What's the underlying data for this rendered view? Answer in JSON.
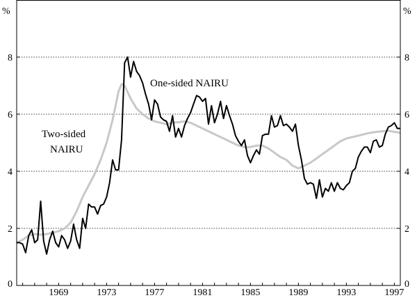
{
  "chart_data": {
    "type": "line",
    "y_unit_left": "%",
    "y_unit_right": "%",
    "xlim": [
      1965.5,
      1997.5
    ],
    "ylim": [
      0,
      10
    ],
    "yticks": [
      0,
      2,
      4,
      6,
      8
    ],
    "ytick_labels": [
      "0",
      "2",
      "4",
      "6",
      "8"
    ],
    "xticks": [
      1969,
      1973,
      1977,
      1981,
      1985,
      1989,
      1993,
      1997
    ],
    "xtick_labels": [
      "1969",
      "1973",
      "1977",
      "1981",
      "1985",
      "1989",
      "1993",
      "1997"
    ],
    "grid": "horizontal dotted",
    "colors": {
      "one_sided": "#000000",
      "two_sided": "#c8c8c8",
      "grid": "#000000"
    },
    "annotations": [
      {
        "text": "One-sided NAIRU",
        "series": "one_sided"
      },
      {
        "text": "Two-sided",
        "series": "two_sided"
      },
      {
        "text": "NAIRU",
        "series": "two_sided"
      }
    ],
    "series": [
      {
        "key": "one_sided",
        "points": [
          [
            1965.5,
            1.5
          ],
          [
            1965.75,
            1.5
          ],
          [
            1966.0,
            1.45
          ],
          [
            1966.25,
            1.15
          ],
          [
            1966.5,
            1.75
          ],
          [
            1966.75,
            1.95
          ],
          [
            1967.0,
            1.5
          ],
          [
            1967.25,
            1.6
          ],
          [
            1967.5,
            2.95
          ],
          [
            1967.75,
            1.55
          ],
          [
            1968.0,
            1.1
          ],
          [
            1968.25,
            1.6
          ],
          [
            1968.5,
            1.9
          ],
          [
            1968.75,
            1.5
          ],
          [
            1969.0,
            1.35
          ],
          [
            1969.25,
            1.75
          ],
          [
            1969.5,
            1.6
          ],
          [
            1969.75,
            1.3
          ],
          [
            1970.0,
            1.55
          ],
          [
            1970.25,
            2.15
          ],
          [
            1970.5,
            1.6
          ],
          [
            1970.75,
            1.3
          ],
          [
            1971.0,
            2.35
          ],
          [
            1971.25,
            2.0
          ],
          [
            1971.5,
            2.85
          ],
          [
            1971.75,
            2.75
          ],
          [
            1972.0,
            2.75
          ],
          [
            1972.25,
            2.5
          ],
          [
            1972.5,
            2.8
          ],
          [
            1972.75,
            2.85
          ],
          [
            1973.0,
            3.1
          ],
          [
            1973.25,
            3.6
          ],
          [
            1973.5,
            4.4
          ],
          [
            1973.75,
            4.05
          ],
          [
            1974.0,
            4.05
          ],
          [
            1974.25,
            5.1
          ],
          [
            1974.5,
            7.8
          ],
          [
            1974.75,
            8.0
          ],
          [
            1975.0,
            7.3
          ],
          [
            1975.25,
            7.85
          ],
          [
            1975.5,
            7.5
          ],
          [
            1975.75,
            7.35
          ],
          [
            1976.0,
            7.1
          ],
          [
            1976.25,
            6.7
          ],
          [
            1976.5,
            6.35
          ],
          [
            1976.75,
            5.8
          ],
          [
            1977.0,
            6.5
          ],
          [
            1977.25,
            6.35
          ],
          [
            1977.5,
            5.9
          ],
          [
            1977.75,
            5.8
          ],
          [
            1978.0,
            5.75
          ],
          [
            1978.25,
            5.4
          ],
          [
            1978.5,
            5.95
          ],
          [
            1978.75,
            5.2
          ],
          [
            1979.0,
            5.5
          ],
          [
            1979.25,
            5.2
          ],
          [
            1979.5,
            5.6
          ],
          [
            1979.75,
            5.85
          ],
          [
            1980.0,
            6.05
          ],
          [
            1980.25,
            6.35
          ],
          [
            1980.5,
            6.65
          ],
          [
            1980.75,
            6.6
          ],
          [
            1981.0,
            6.45
          ],
          [
            1981.25,
            6.55
          ],
          [
            1981.5,
            5.65
          ],
          [
            1981.75,
            6.3
          ],
          [
            1982.0,
            5.7
          ],
          [
            1982.25,
            6.0
          ],
          [
            1982.5,
            6.45
          ],
          [
            1982.75,
            5.85
          ],
          [
            1983.0,
            6.3
          ],
          [
            1983.25,
            5.95
          ],
          [
            1983.5,
            5.65
          ],
          [
            1983.75,
            5.25
          ],
          [
            1984.0,
            5.05
          ],
          [
            1984.25,
            4.9
          ],
          [
            1984.5,
            5.1
          ],
          [
            1984.75,
            4.55
          ],
          [
            1985.0,
            4.3
          ],
          [
            1985.25,
            4.55
          ],
          [
            1985.5,
            4.75
          ],
          [
            1985.75,
            4.6
          ],
          [
            1986.0,
            5.25
          ],
          [
            1986.25,
            5.3
          ],
          [
            1986.5,
            5.3
          ],
          [
            1986.75,
            5.95
          ],
          [
            1987.0,
            5.55
          ],
          [
            1987.25,
            5.6
          ],
          [
            1987.5,
            5.95
          ],
          [
            1987.75,
            5.6
          ],
          [
            1988.0,
            5.65
          ],
          [
            1988.25,
            5.55
          ],
          [
            1988.5,
            5.4
          ],
          [
            1988.75,
            5.65
          ],
          [
            1989.0,
            4.9
          ],
          [
            1989.25,
            4.4
          ],
          [
            1989.5,
            3.75
          ],
          [
            1989.75,
            3.55
          ],
          [
            1990.0,
            3.6
          ],
          [
            1990.25,
            3.55
          ],
          [
            1990.5,
            3.05
          ],
          [
            1990.75,
            3.7
          ],
          [
            1991.0,
            3.1
          ],
          [
            1991.25,
            3.4
          ],
          [
            1991.5,
            3.3
          ],
          [
            1991.75,
            3.6
          ],
          [
            1992.0,
            3.3
          ],
          [
            1992.25,
            3.6
          ],
          [
            1992.5,
            3.4
          ],
          [
            1992.75,
            3.35
          ],
          [
            1993.0,
            3.5
          ],
          [
            1993.25,
            3.6
          ],
          [
            1993.5,
            4.0
          ],
          [
            1993.75,
            4.1
          ],
          [
            1994.0,
            4.5
          ],
          [
            1994.25,
            4.7
          ],
          [
            1994.5,
            4.85
          ],
          [
            1994.75,
            4.85
          ],
          [
            1995.0,
            4.65
          ],
          [
            1995.25,
            5.05
          ],
          [
            1995.5,
            5.1
          ],
          [
            1995.75,
            4.85
          ],
          [
            1996.0,
            4.9
          ],
          [
            1996.25,
            5.3
          ],
          [
            1996.5,
            5.55
          ],
          [
            1996.75,
            5.6
          ],
          [
            1997.0,
            5.7
          ],
          [
            1997.25,
            5.5
          ],
          [
            1997.5,
            5.5
          ]
        ]
      },
      {
        "key": "two_sided",
        "points": [
          [
            1965.5,
            1.5
          ],
          [
            1966.0,
            1.6
          ],
          [
            1966.5,
            1.75
          ],
          [
            1967.0,
            1.8
          ],
          [
            1967.5,
            1.78
          ],
          [
            1968.0,
            1.8
          ],
          [
            1968.5,
            1.85
          ],
          [
            1969.0,
            1.9
          ],
          [
            1969.5,
            2.0
          ],
          [
            1970.0,
            2.2
          ],
          [
            1970.5,
            2.6
          ],
          [
            1971.0,
            3.1
          ],
          [
            1971.5,
            3.5
          ],
          [
            1972.0,
            3.9
          ],
          [
            1972.5,
            4.4
          ],
          [
            1973.0,
            5.0
          ],
          [
            1973.5,
            5.8
          ],
          [
            1974.0,
            6.8
          ],
          [
            1974.25,
            7.05
          ],
          [
            1974.5,
            7.0
          ],
          [
            1975.0,
            6.55
          ],
          [
            1975.5,
            6.2
          ],
          [
            1976.0,
            6.0
          ],
          [
            1976.5,
            5.85
          ],
          [
            1977.0,
            5.75
          ],
          [
            1977.5,
            5.7
          ],
          [
            1978.0,
            5.65
          ],
          [
            1978.5,
            5.7
          ],
          [
            1979.0,
            5.72
          ],
          [
            1979.5,
            5.75
          ],
          [
            1980.0,
            5.7
          ],
          [
            1980.5,
            5.6
          ],
          [
            1981.0,
            5.5
          ],
          [
            1981.5,
            5.4
          ],
          [
            1982.0,
            5.3
          ],
          [
            1982.5,
            5.2
          ],
          [
            1983.0,
            5.1
          ],
          [
            1983.5,
            5.0
          ],
          [
            1984.0,
            4.9
          ],
          [
            1984.5,
            4.85
          ],
          [
            1985.0,
            4.85
          ],
          [
            1985.5,
            4.9
          ],
          [
            1986.0,
            4.9
          ],
          [
            1986.5,
            4.8
          ],
          [
            1987.0,
            4.65
          ],
          [
            1987.5,
            4.5
          ],
          [
            1988.0,
            4.4
          ],
          [
            1988.5,
            4.2
          ],
          [
            1989.0,
            4.1
          ],
          [
            1989.5,
            4.2
          ],
          [
            1990.0,
            4.3
          ],
          [
            1990.5,
            4.45
          ],
          [
            1991.0,
            4.6
          ],
          [
            1991.5,
            4.75
          ],
          [
            1992.0,
            4.9
          ],
          [
            1992.5,
            5.05
          ],
          [
            1993.0,
            5.15
          ],
          [
            1993.5,
            5.2
          ],
          [
            1994.0,
            5.25
          ],
          [
            1994.5,
            5.3
          ],
          [
            1995.0,
            5.35
          ],
          [
            1995.5,
            5.38
          ],
          [
            1996.0,
            5.4
          ],
          [
            1996.5,
            5.42
          ],
          [
            1997.0,
            5.38
          ],
          [
            1997.5,
            5.35
          ]
        ]
      }
    ]
  }
}
